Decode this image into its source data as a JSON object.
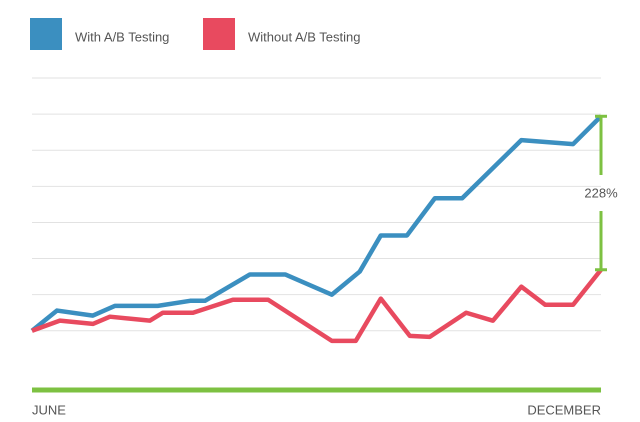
{
  "chart_data": {
    "type": "line",
    "series": [
      {
        "name": "With A/B Testing",
        "color": "#3b8fc0",
        "x": [
          0,
          4.4,
          10.7,
          14.6,
          22.1,
          27.8,
          30.4,
          38.3,
          44.5,
          52.7,
          57.6,
          61.3,
          65.9,
          70.8,
          75.6,
          86.0,
          95.1,
          100
        ],
        "values": [
          0,
          0.56,
          0.42,
          0.69,
          0.69,
          0.83,
          0.83,
          1.56,
          1.56,
          1.0,
          1.64,
          2.64,
          2.64,
          3.67,
          3.67,
          5.28,
          5.17,
          5.94
        ]
      },
      {
        "name": "Without A/B Testing",
        "color": "#e84a5f",
        "x": [
          0,
          4.9,
          10.7,
          13.7,
          20.7,
          23.0,
          28.3,
          35.3,
          41.5,
          52.7,
          56.9,
          61.3,
          66.4,
          69.9,
          76.3,
          81.0,
          86.0,
          90.2,
          95.1,
          100
        ],
        "values": [
          0,
          0.28,
          0.19,
          0.39,
          0.28,
          0.5,
          0.5,
          0.86,
          0.86,
          -0.28,
          -0.28,
          0.89,
          -0.14,
          -0.17,
          0.5,
          0.28,
          1.22,
          0.72,
          0.72,
          1.69
        ]
      }
    ],
    "annotation": "228%",
    "annotation_color": "#7dc142",
    "axis_color": "#7dc142",
    "xlim": [
      0,
      100
    ],
    "xticks": [
      {
        "value": 0,
        "label": "JUNE"
      },
      {
        "value": 100,
        "label": "DECEMBER"
      }
    ],
    "ylim": [
      -1.64,
      7
    ],
    "yticks": [
      0,
      1,
      2,
      3,
      4,
      5,
      6,
      7
    ],
    "grid": true
  }
}
